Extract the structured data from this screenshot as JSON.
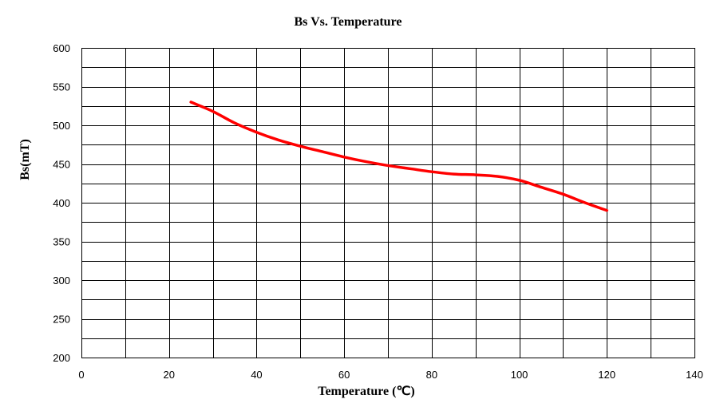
{
  "chart_data": {
    "type": "line",
    "title": "Bs Vs. Temperature",
    "xlabel": "Temperature (℃)",
    "ylabel": "Bs(mT)",
    "xlim": [
      0,
      140
    ],
    "ylim": [
      200,
      600
    ],
    "xticks": [
      0,
      20,
      40,
      60,
      80,
      100,
      120,
      140
    ],
    "yticks": [
      200,
      250,
      300,
      350,
      400,
      450,
      500,
      550,
      600
    ],
    "x_minor_step": 10,
    "y_minor_step": 25,
    "grid": true,
    "legend": "none",
    "series": [
      {
        "color": "#ff0000",
        "x": [
          25,
          30,
          35,
          40,
          45,
          50,
          55,
          60,
          65,
          70,
          75,
          80,
          85,
          90,
          95,
          100,
          105,
          110,
          115,
          120
        ],
        "y": [
          530,
          518,
          503,
          491,
          481,
          473,
          466,
          459,
          453,
          448,
          444,
          440,
          437,
          436,
          434,
          429,
          420,
          411,
          400,
          390
        ]
      }
    ]
  }
}
